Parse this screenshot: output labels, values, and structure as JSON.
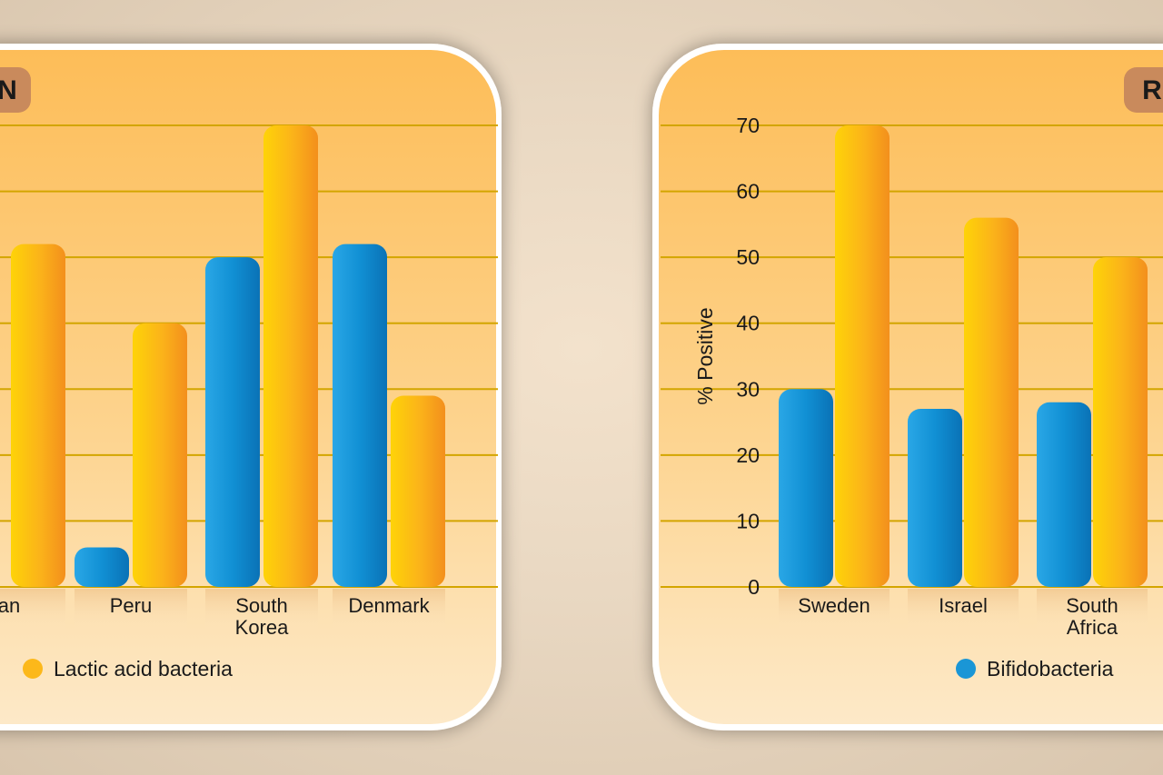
{
  "chart_data": [
    {
      "type": "bar",
      "title_fragment": "N",
      "categories": [
        "an",
        "Peru",
        "South Korea",
        "Denmark"
      ],
      "category_lines": [
        [
          "an"
        ],
        [
          "Peru"
        ],
        [
          "South",
          "Korea"
        ],
        [
          "Denmark"
        ]
      ],
      "series": [
        {
          "name": "Bifidobacteria",
          "color": "#1a96d6",
          "values": [
            null,
            6,
            50,
            52
          ]
        },
        {
          "name": "Lactic acid bacteria",
          "color": "#fcb81a",
          "values": [
            52,
            40,
            70,
            29
          ]
        }
      ],
      "ylim": [
        0,
        70
      ],
      "grid": true,
      "legend": {
        "visible_entry": "Lactic acid bacteria",
        "placement": "bottom-left"
      }
    },
    {
      "type": "bar",
      "title_fragment": "R",
      "ylabel": "% Positive",
      "yticks": [
        "0",
        "10",
        "20",
        "30",
        "40",
        "50",
        "60",
        "70"
      ],
      "categories": [
        "Sweden",
        "Israel",
        "South Africa"
      ],
      "category_lines": [
        [
          "Sweden"
        ],
        [
          "Israel"
        ],
        [
          "South",
          "Africa"
        ]
      ],
      "series": [
        {
          "name": "Bifidobacteria",
          "color": "#1a96d6",
          "values": [
            30,
            27,
            28
          ]
        },
        {
          "name": "Lactic acid bacteria",
          "color": "#fcb81a",
          "values": [
            70,
            56,
            50
          ]
        }
      ],
      "ylim": [
        0,
        70
      ],
      "grid": true,
      "legend": {
        "visible_entry": "Bifidobacteria",
        "placement": "bottom-right"
      }
    }
  ],
  "colors": {
    "panel_top": "#fdbf5c",
    "panel_bottom": "#fde6c0",
    "grid_line": "#d8a800",
    "title_tab": "#c98a5c",
    "blue_bar": "#1a96d6",
    "yellow_bar": "#fcb81a",
    "text": "#1a1a1a"
  }
}
